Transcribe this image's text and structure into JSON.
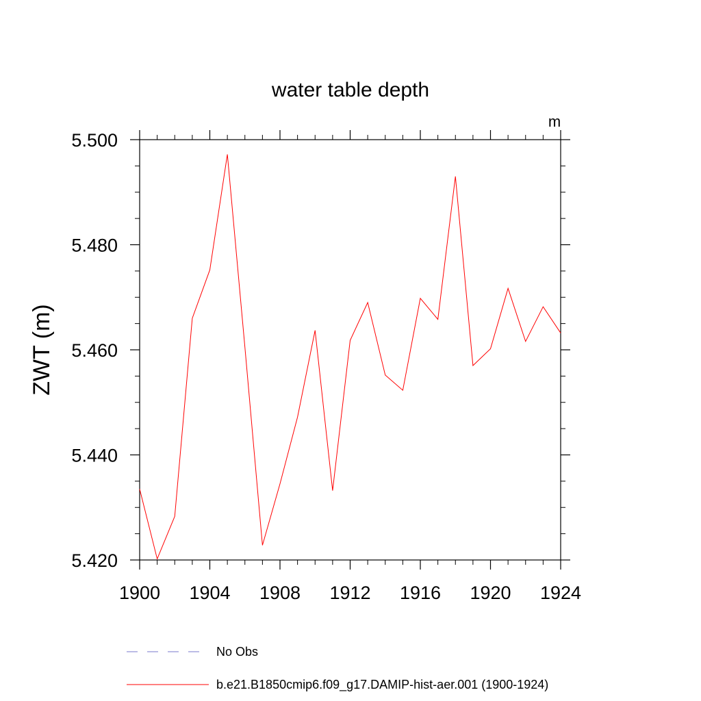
{
  "chart_data": {
    "type": "line",
    "title": "water table depth",
    "ylabel": "ZWT  (m)",
    "units": "m",
    "xlim": [
      1900,
      1924
    ],
    "ylim": [
      5.42,
      5.5
    ],
    "x_ticks": [
      1900,
      1904,
      1908,
      1912,
      1916,
      1920,
      1924
    ],
    "x_tick_labels": [
      "1900",
      "1904",
      "1908",
      "1912",
      "1916",
      "1920",
      "1924"
    ],
    "y_ticks": [
      5.42,
      5.44,
      5.46,
      5.48,
      5.5
    ],
    "y_tick_labels": [
      "5.420",
      "5.440",
      "5.460",
      "5.480",
      "5.500"
    ],
    "y_minor_step": 0.005,
    "grid": false,
    "legend_position": "bottom",
    "series": [
      {
        "name": "b.e21.B1850cmip6.f09_g17.DAMIP-hist-aer.001 (1900-1924)",
        "color": "#ff0000",
        "style": "solid",
        "x": [
          1900,
          1901,
          1902,
          1903,
          1904,
          1905,
          1906,
          1907,
          1908,
          1909,
          1910,
          1911,
          1912,
          1913,
          1914,
          1915,
          1916,
          1917,
          1918,
          1919,
          1920,
          1921,
          1922,
          1923,
          1924
        ],
        "y": [
          5.4335,
          5.4202,
          5.4283,
          5.466,
          5.4752,
          5.4972,
          5.4605,
          5.4228,
          5.4345,
          5.4472,
          5.4637,
          5.4332,
          5.4618,
          5.469,
          5.4552,
          5.4523,
          5.4698,
          5.4658,
          5.493,
          5.457,
          5.4602,
          5.4717,
          5.4616,
          5.4682,
          5.4632
        ]
      }
    ],
    "legend": [
      {
        "label": "No Obs",
        "color": "#7777cc",
        "style": "dashed"
      },
      {
        "label": "b.e21.B1850cmip6.f09_g17.DAMIP-hist-aer.001 (1900-1924)",
        "color": "#ff0000",
        "style": "solid"
      }
    ]
  }
}
